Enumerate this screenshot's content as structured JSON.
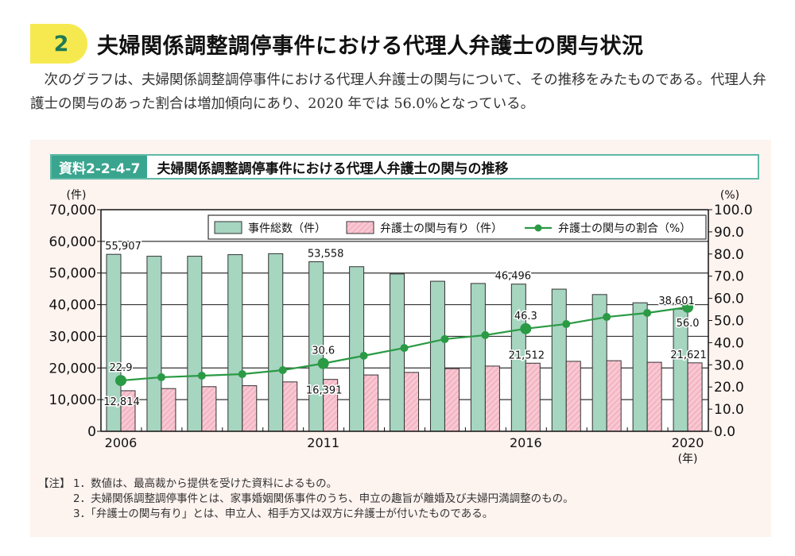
{
  "section": {
    "number": "2",
    "title": "夫婦関係調整調停事件における代理人弁護士の関与状況",
    "intro": "次のグラフは、夫婦関係調整調停事件における代理人弁護士の関与について、その推移をみたものである。代理人弁護士の関与のあった割合は増加傾向にあり、2020 年では 56.0%となっている。"
  },
  "figure": {
    "id": "資料2-2-4-7",
    "title": "夫婦関係調整調停事件における代理人弁護士の関与の推移"
  },
  "colors": {
    "total_bar": "#a6d5c0",
    "lawyer_bar": "#f7c7d2",
    "lawyer_hatch": "#f2a3b5",
    "ratio_line": "#2a9a44",
    "section_badge": "#f6e94f",
    "figure_badge": "#3aa58f"
  },
  "chart_data": {
    "type": "bar+line",
    "title": "夫婦関係調整調停事件における代理人弁護士の関与の推移",
    "x": [
      2006,
      2007,
      2008,
      2009,
      2010,
      2011,
      2012,
      2013,
      2014,
      2015,
      2016,
      2017,
      2018,
      2019,
      2020
    ],
    "x_tick_labels": [
      "2006",
      "2011",
      "2016",
      "2020"
    ],
    "xlabel": "(年)",
    "ylabel_left": "(件)",
    "ylabel_right": "(%)",
    "ylim_left": [
      0,
      70000
    ],
    "ylim_right": [
      0,
      100
    ],
    "y_ticks_left": [
      "0",
      "10,000",
      "20,000",
      "30,000",
      "40,000",
      "50,000",
      "60,000",
      "70,000"
    ],
    "y_ticks_right": [
      "0.0",
      "10.0",
      "20.0",
      "30.0",
      "40.0",
      "50.0",
      "60.0",
      "70.0",
      "80.0",
      "90.0",
      "100.0"
    ],
    "grid": "horizontal",
    "legend_position": "top-right",
    "series": [
      {
        "name": "事件総数（件）",
        "type": "bar",
        "axis": "left",
        "values": [
          55907,
          55300,
          55300,
          55800,
          56100,
          53558,
          52000,
          49700,
          47400,
          46700,
          46496,
          44900,
          43200,
          40600,
          38601
        ]
      },
      {
        "name": "弁護士の関与有り（件）",
        "type": "bar",
        "axis": "left",
        "pattern": "hatched",
        "values": [
          12814,
          13500,
          14100,
          14400,
          15600,
          16391,
          17800,
          18600,
          19800,
          20600,
          21512,
          22100,
          22300,
          21800,
          21621
        ]
      },
      {
        "name": "弁護士の関与の割合（%）",
        "type": "line",
        "axis": "right",
        "values": [
          22.9,
          24.4,
          25.1,
          25.8,
          27.6,
          30.6,
          34.1,
          37.6,
          41.6,
          43.4,
          46.3,
          48.4,
          51.6,
          53.4,
          56.0
        ]
      }
    ],
    "annotations": [
      {
        "series": 0,
        "index": 0,
        "text": "55,907"
      },
      {
        "series": 0,
        "index": 5,
        "text": "53,558"
      },
      {
        "series": 0,
        "index": 10,
        "text": "46,496"
      },
      {
        "series": 0,
        "index": 14,
        "text": "38,601"
      },
      {
        "series": 1,
        "index": 0,
        "text": "12,814"
      },
      {
        "series": 1,
        "index": 5,
        "text": "16,391"
      },
      {
        "series": 1,
        "index": 10,
        "text": "21,512"
      },
      {
        "series": 1,
        "index": 14,
        "text": "21,621"
      },
      {
        "series": 2,
        "index": 0,
        "text": "22.9"
      },
      {
        "series": 2,
        "index": 5,
        "text": "30.6"
      },
      {
        "series": 2,
        "index": 10,
        "text": "46.3"
      },
      {
        "series": 2,
        "index": 14,
        "text": "56.0"
      }
    ]
  },
  "notes": {
    "label": "【注】",
    "items": [
      "1．数値は、最高裁から提供を受けた資料によるもの。",
      "2．夫婦関係調整調停事件とは、家事婚姻関係事件のうち、申立の趣旨が離婚及び夫婦円満調整のもの。",
      "3．「弁護士の関与有り」とは、申立人、相手方又は双方に弁護士が付いたものである。"
    ]
  }
}
